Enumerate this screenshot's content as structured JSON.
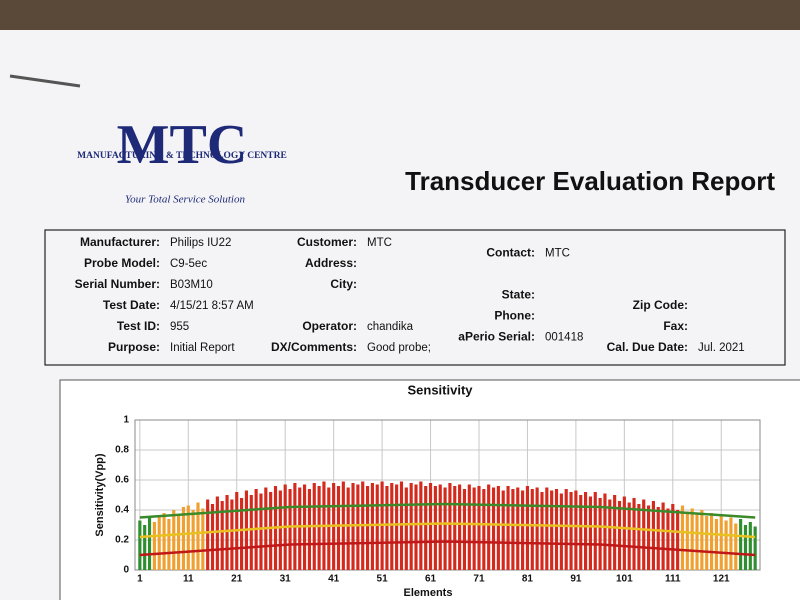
{
  "header": {
    "logo": "MTC",
    "logo_subtitle": "MANUFACTURING & TECHNOLOGY CENTRE",
    "tagline": "Your Total Service Solution",
    "title": "Transducer Evaluation Report"
  },
  "fields": [
    [
      {
        "label": "Manufacturer:",
        "value": "Philips IU22"
      },
      {
        "label": "Probe Model:",
        "value": "C9-5ec"
      },
      {
        "label": "Serial Number:",
        "value": "B03M10"
      },
      {
        "label": "Test Date:",
        "value": "4/15/21 8:57 AM"
      },
      {
        "label": "Test ID:",
        "value": "955"
      },
      {
        "label": "Purpose:",
        "value": "Initial Report"
      }
    ],
    [
      {
        "label": "Customer:",
        "value": "MTC"
      },
      {
        "label": "Address:"
      },
      {
        "label": "City:"
      },
      {
        "label": "Operator:",
        "value": "chandika"
      },
      {
        "label": "DX/Comments:",
        "value": "Good probe;"
      }
    ],
    [
      {
        "label": "Contact:",
        "value": "MTC"
      },
      {
        "label": "State:"
      },
      {
        "label": "Phone:"
      },
      {
        "label": "aPerio Serial:",
        "value": "001418"
      }
    ],
    [
      {
        "label": "Zip Code:"
      },
      {
        "label": "Fax:"
      },
      {
        "label": "Cal. Due Date:",
        "value": "Jul. 2021"
      }
    ]
  ],
  "chart_data": {
    "type": "bar",
    "title": "Sensitivity",
    "x_label": "Elements",
    "y_label": "Sensitivity(Vpp)",
    "xlim": [
      0,
      129
    ],
    "xticks": [
      1,
      11,
      21,
      31,
      41,
      51,
      61,
      71,
      81,
      91,
      101,
      111,
      121
    ],
    "ylim": [
      0,
      1
    ],
    "yticks": [
      0,
      0.2,
      0.4,
      0.6,
      0.8,
      1
    ],
    "grid": true,
    "values": [
      0.33,
      0.3,
      0.35,
      0.32,
      0.36,
      0.38,
      0.34,
      0.4,
      0.37,
      0.42,
      0.43,
      0.4,
      0.45,
      0.41,
      0.47,
      0.44,
      0.49,
      0.46,
      0.5,
      0.47,
      0.52,
      0.48,
      0.53,
      0.5,
      0.54,
      0.51,
      0.55,
      0.52,
      0.56,
      0.53,
      0.57,
      0.54,
      0.58,
      0.55,
      0.57,
      0.54,
      0.58,
      0.56,
      0.59,
      0.55,
      0.58,
      0.56,
      0.59,
      0.55,
      0.58,
      0.57,
      0.59,
      0.56,
      0.58,
      0.57,
      0.59,
      0.56,
      0.58,
      0.57,
      0.59,
      0.55,
      0.58,
      0.57,
      0.59,
      0.56,
      0.58,
      0.56,
      0.57,
      0.55,
      0.58,
      0.56,
      0.57,
      0.54,
      0.57,
      0.55,
      0.56,
      0.54,
      0.57,
      0.55,
      0.56,
      0.53,
      0.56,
      0.54,
      0.55,
      0.53,
      0.56,
      0.54,
      0.55,
      0.52,
      0.55,
      0.53,
      0.54,
      0.51,
      0.54,
      0.52,
      0.53,
      0.5,
      0.52,
      0.49,
      0.52,
      0.48,
      0.51,
      0.47,
      0.5,
      0.46,
      0.49,
      0.45,
      0.48,
      0.44,
      0.47,
      0.43,
      0.46,
      0.42,
      0.45,
      0.41,
      0.44,
      0.4,
      0.43,
      0.39,
      0.41,
      0.37,
      0.4,
      0.36,
      0.38,
      0.34,
      0.37,
      0.33,
      0.35,
      0.31,
      0.34,
      0.3,
      0.32,
      0.29
    ],
    "colors": [
      "#2f8f2f",
      "#2f8f2f",
      "#2f8f2f",
      "#f0a030",
      "#f0a030",
      "#f0a030",
      "#f0a030",
      "#f0a030",
      "#f0a030",
      "#f0a030",
      "#f0a030",
      "#f0a030",
      "#f0a030",
      "#f0a030",
      "#d42a1e",
      "#d42a1e",
      "#d42a1e",
      "#d42a1e",
      "#d42a1e",
      "#d42a1e",
      "#d42a1e",
      "#d42a1e",
      "#d42a1e",
      "#d42a1e",
      "#d42a1e",
      "#d42a1e",
      "#d42a1e",
      "#d42a1e",
      "#d42a1e",
      "#d42a1e",
      "#d42a1e",
      "#d42a1e",
      "#d42a1e",
      "#d42a1e",
      "#d42a1e",
      "#d42a1e",
      "#d42a1e",
      "#d42a1e",
      "#d42a1e",
      "#d42a1e",
      "#d42a1e",
      "#d42a1e",
      "#d42a1e",
      "#d42a1e",
      "#d42a1e",
      "#d42a1e",
      "#d42a1e",
      "#d42a1e",
      "#d42a1e",
      "#d42a1e",
      "#d42a1e",
      "#d42a1e",
      "#d42a1e",
      "#d42a1e",
      "#d42a1e",
      "#d42a1e",
      "#d42a1e",
      "#d42a1e",
      "#d42a1e",
      "#d42a1e",
      "#d42a1e",
      "#d42a1e",
      "#d42a1e",
      "#d42a1e",
      "#d42a1e",
      "#d42a1e",
      "#d42a1e",
      "#d42a1e",
      "#d42a1e",
      "#d42a1e",
      "#d42a1e",
      "#d42a1e",
      "#d42a1e",
      "#d42a1e",
      "#d42a1e",
      "#d42a1e",
      "#d42a1e",
      "#d42a1e",
      "#d42a1e",
      "#d42a1e",
      "#d42a1e",
      "#d42a1e",
      "#d42a1e",
      "#d42a1e",
      "#d42a1e",
      "#d42a1e",
      "#d42a1e",
      "#d42a1e",
      "#d42a1e",
      "#d42a1e",
      "#d42a1e",
      "#d42a1e",
      "#d42a1e",
      "#d42a1e",
      "#d42a1e",
      "#d42a1e",
      "#d42a1e",
      "#d42a1e",
      "#d42a1e",
      "#d42a1e",
      "#d42a1e",
      "#d42a1e",
      "#d42a1e",
      "#d42a1e",
      "#d42a1e",
      "#d42a1e",
      "#d42a1e",
      "#d42a1e",
      "#d42a1e",
      "#d42a1e",
      "#d42a1e",
      "#d42a1e",
      "#f0a030",
      "#f0a030",
      "#f0a030",
      "#f0a030",
      "#f0a030",
      "#f0a030",
      "#f0a030",
      "#f0a030",
      "#f0a030",
      "#f0a030",
      "#f0a030",
      "#f0a030",
      "#2f8f2f",
      "#2f8f2f",
      "#2f8f2f",
      "#2f8f2f"
    ],
    "limits": [
      {
        "color": "#3a8a2a",
        "x": [
          1,
          32,
          64,
          96,
          128
        ],
        "values": [
          0.35,
          0.42,
          0.44,
          0.42,
          0.35
        ]
      },
      {
        "color": "#e8c020",
        "x": [
          1,
          32,
          64,
          96,
          128
        ],
        "values": [
          0.22,
          0.29,
          0.31,
          0.29,
          0.22
        ]
      },
      {
        "color": "#c01818",
        "x": [
          1,
          32,
          64,
          96,
          128
        ],
        "values": [
          0.1,
          0.17,
          0.19,
          0.17,
          0.1
        ]
      }
    ]
  }
}
